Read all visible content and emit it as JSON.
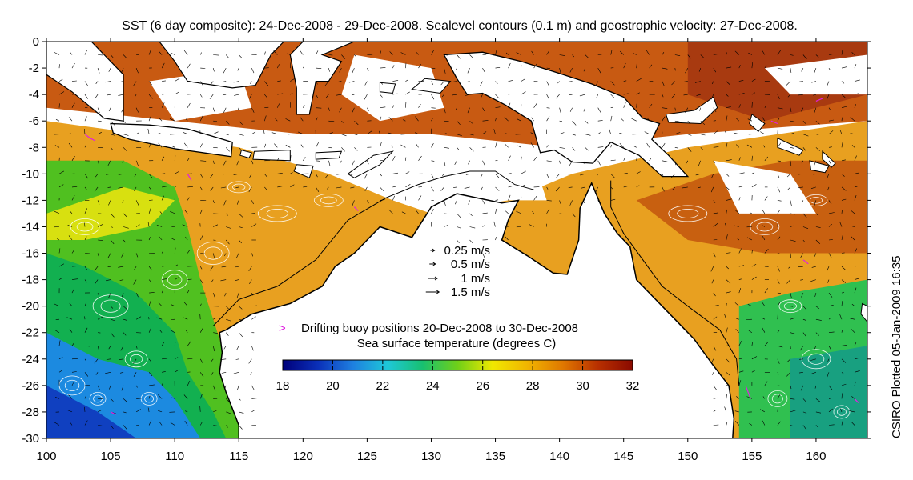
{
  "title": "SST (6 day composite): 24-Dec-2008 - 29-Dec-2008. Sealevel contours (0.1 m) and geostrophic velocity: 27-Dec-2008.",
  "credit": "CSIRO Plotted 05-Jan-2009 16:35",
  "x_axis": {
    "range": [
      100,
      164
    ],
    "ticks": [
      100,
      105,
      110,
      115,
      120,
      125,
      130,
      135,
      140,
      145,
      150,
      155,
      160
    ]
  },
  "y_axis": {
    "range": [
      -30,
      0
    ],
    "ticks": [
      0,
      -2,
      -4,
      -6,
      -8,
      -10,
      -12,
      -14,
      -16,
      -18,
      -20,
      -22,
      -24,
      -26,
      -28,
      -30
    ]
  },
  "velocity_legend": {
    "items": [
      {
        "label": "0.25 m/s",
        "speed": 0.25
      },
      {
        "label": "0.5 m/s",
        "speed": 0.5
      },
      {
        "label": "1 m/s",
        "speed": 1.0
      },
      {
        "label": "1.5 m/s",
        "speed": 1.5
      }
    ]
  },
  "buoy_legend": {
    "marker": ">",
    "label": "Drifting buoy positions 20-Dec-2008 to 30-Dec-2008",
    "color": "#e020e0"
  },
  "colorbar": {
    "label": "Sea surface temperature (degrees C)",
    "min": 18,
    "max": 32,
    "ticks": [
      18,
      20,
      22,
      24,
      26,
      28,
      30,
      32
    ],
    "colors": [
      "#00007a",
      "#0a2fb8",
      "#1e7fe0",
      "#1ec8d8",
      "#18c070",
      "#70d018",
      "#f0e800",
      "#f0b400",
      "#e07800",
      "#b83000",
      "#8a0a00"
    ]
  },
  "colors": {
    "land": "#ffffff",
    "coast": "#000000",
    "contour": "#ffffff",
    "arrow": "#000000",
    "warm": "#e07a10",
    "buoy": "#e020e0"
  }
}
